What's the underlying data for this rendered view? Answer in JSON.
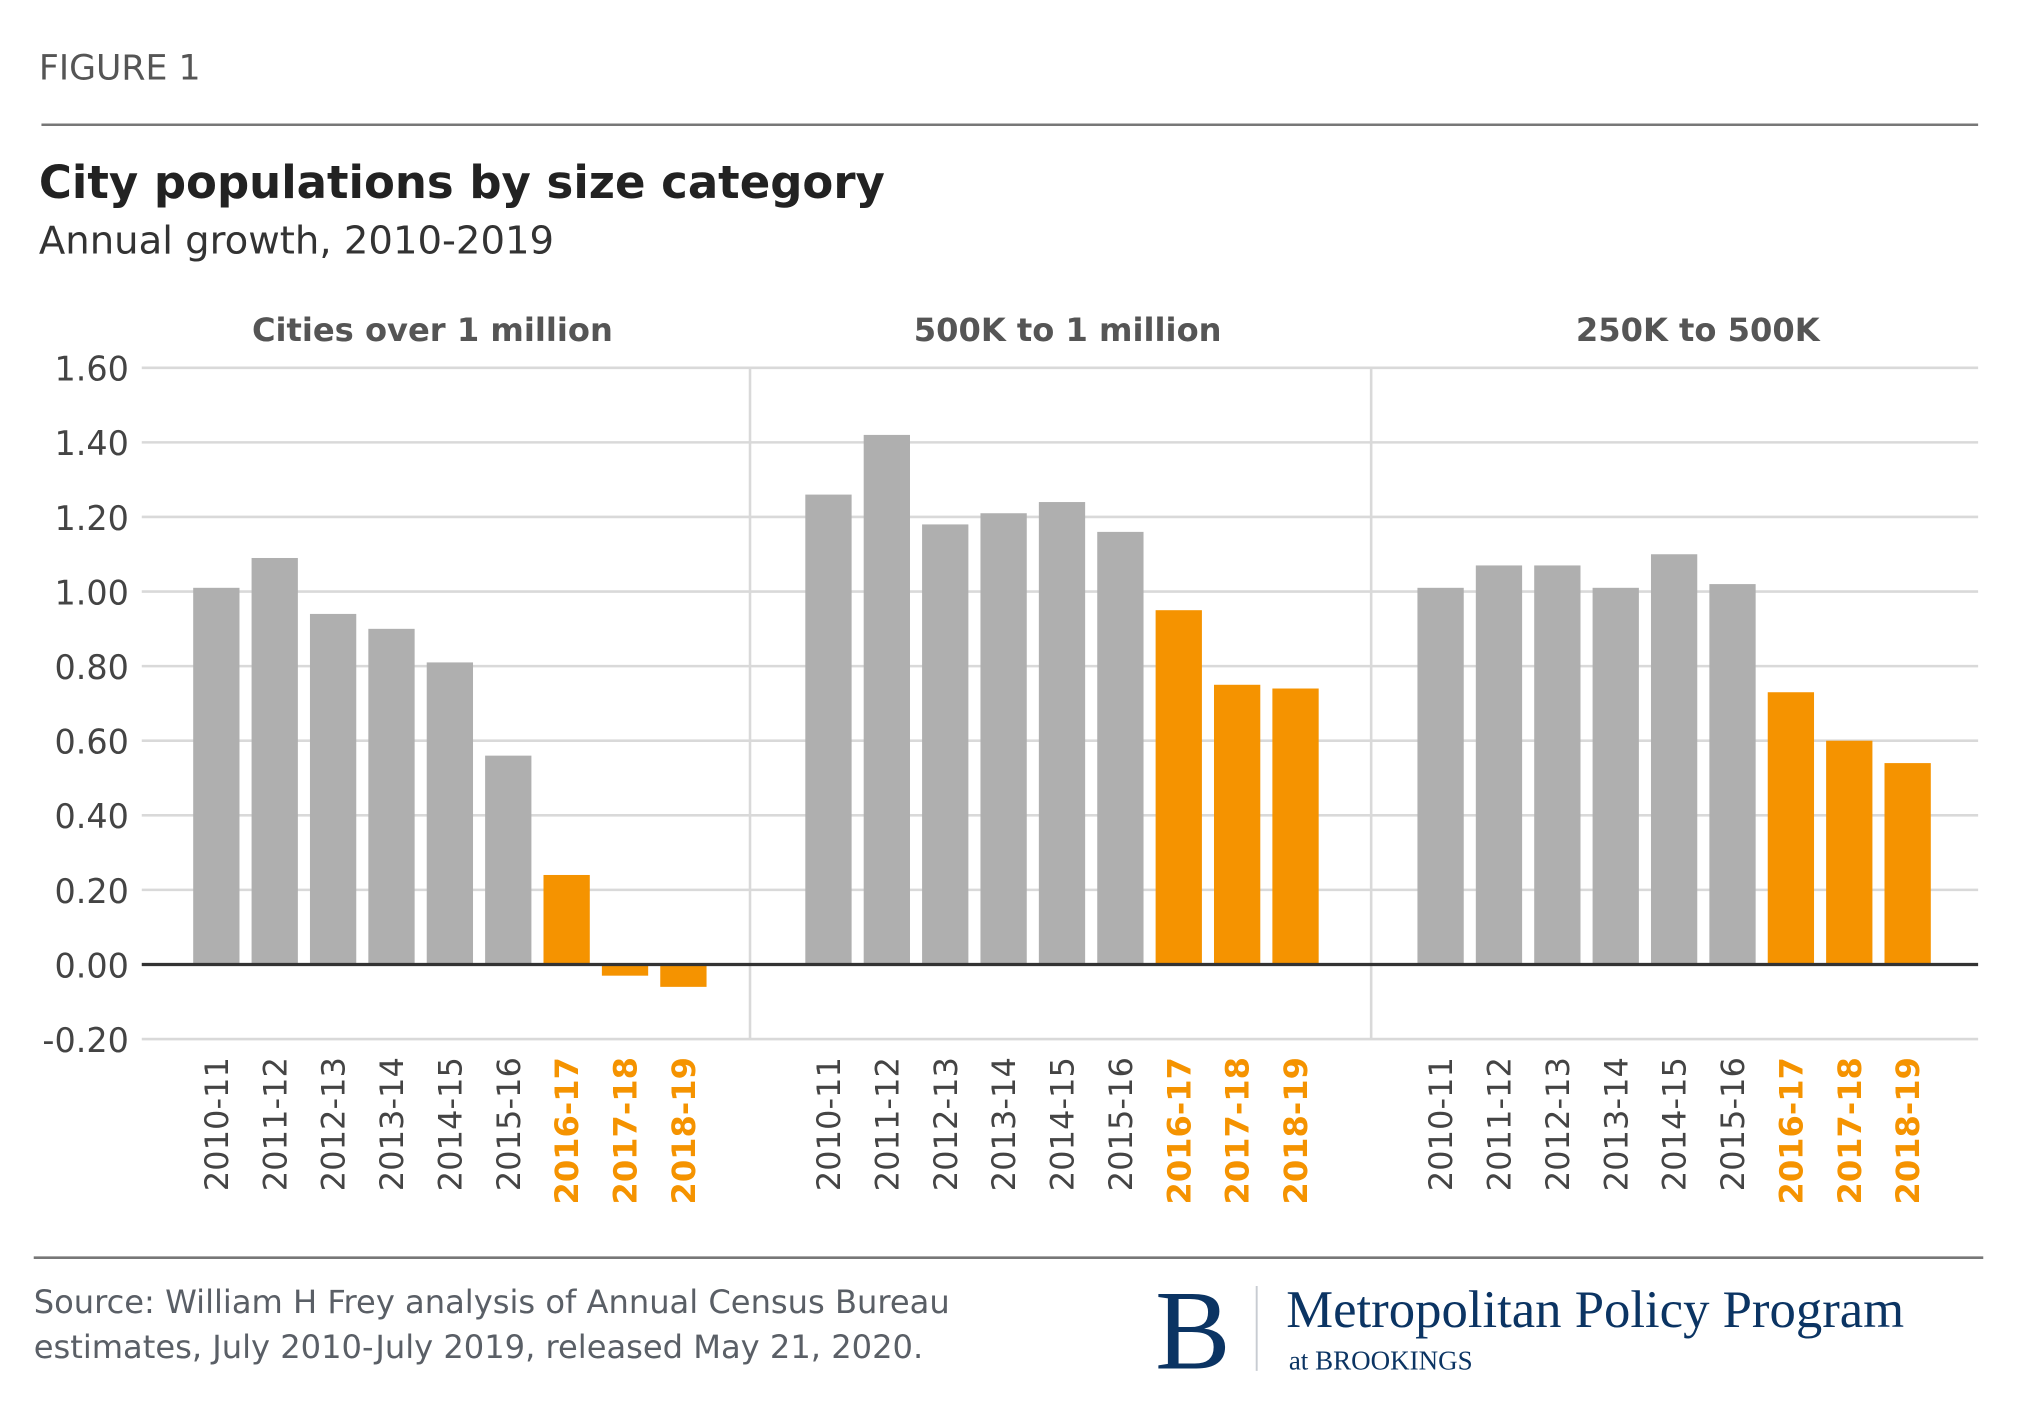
{
  "figure_label": "FIGURE 1",
  "title": "City populations by size category",
  "subtitle": "Annual growth, 2010-2019",
  "source": {
    "line1": "Source: William H Frey analysis of   Annual Census Bureau",
    "line2": "estimates, July 2010-July 2019, released May 21, 2020."
  },
  "logo": {
    "letter": "B",
    "name": "Metropolitan Policy Program",
    "sub": "at BROOKINGS",
    "color": "#0b3463"
  },
  "colors": {
    "base": "#afafaf",
    "highlight": "#f59300",
    "grid": "#d9d9d9",
    "text": "#444444"
  },
  "chart_data": {
    "type": "bar",
    "ylim": [
      -0.2,
      1.6
    ],
    "yticks": [
      "1.60",
      "1.40",
      "1.20",
      "1.00",
      "0.80",
      "0.60",
      "0.40",
      "0.20",
      "0.00",
      "-0.20"
    ],
    "grid": true,
    "categories": [
      "2010-11",
      "2011-12",
      "2012-13",
      "2013-14",
      "2014-15",
      "2015-16",
      "2016-17",
      "2017-18",
      "2018-19"
    ],
    "highlighted_categories": [
      "2016-17",
      "2017-18",
      "2018-19"
    ],
    "panels": [
      {
        "title": "Cities over 1 million",
        "values": [
          1.01,
          1.09,
          0.94,
          0.9,
          0.81,
          0.56,
          0.24,
          -0.03,
          -0.06
        ]
      },
      {
        "title": "500K to 1 million",
        "values": [
          1.26,
          1.42,
          1.18,
          1.21,
          1.24,
          1.16,
          0.95,
          0.75,
          0.74
        ]
      },
      {
        "title": "250K to 500K",
        "values": [
          1.01,
          1.07,
          1.07,
          1.01,
          1.1,
          1.02,
          0.73,
          0.6,
          0.54
        ]
      }
    ]
  }
}
